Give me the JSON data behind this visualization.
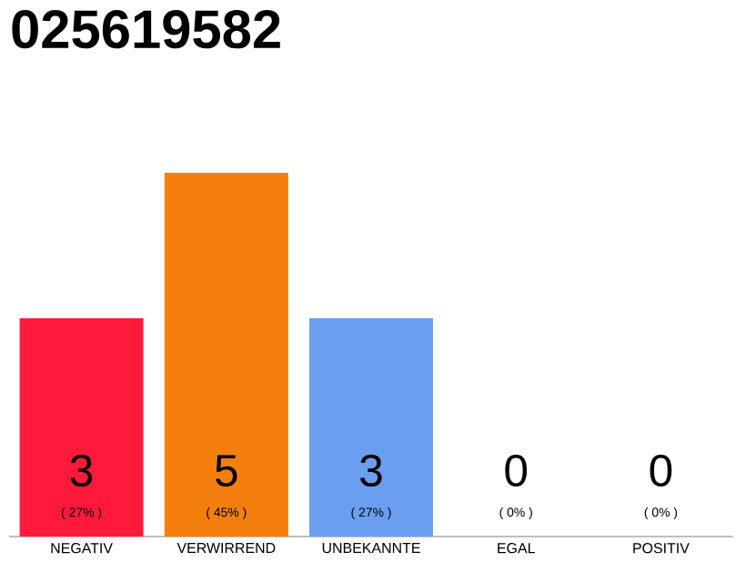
{
  "chart_data": {
    "type": "bar",
    "title": "025619582",
    "categories": [
      "NEGATIV",
      "VERWIRREND",
      "UNBEKANNTE",
      "EGAL",
      "POSITIV"
    ],
    "values": [
      3,
      5,
      3,
      0,
      0
    ],
    "colors": [
      "#ff1a3c",
      "#f47f0f",
      "#6a9fef",
      "#e0e0e0",
      "#e0e0e0"
    ],
    "value_labels": [
      "3",
      "5",
      "3",
      "0",
      "0"
    ],
    "annotations": [
      {
        "text": "( 27% )",
        "x": "NEGATIV",
        "y": 0
      },
      {
        "text": "( 45% )",
        "x": "VERWIRREND",
        "y": 0
      },
      {
        "text": "( 27% )",
        "x": "UNBEKANNTE",
        "y": 0
      },
      {
        "text": "( 0% )",
        "x": "EGAL",
        "y": 0
      },
      {
        "text": "( 0% )",
        "x": "POSITIV",
        "y": 0
      }
    ]
  }
}
